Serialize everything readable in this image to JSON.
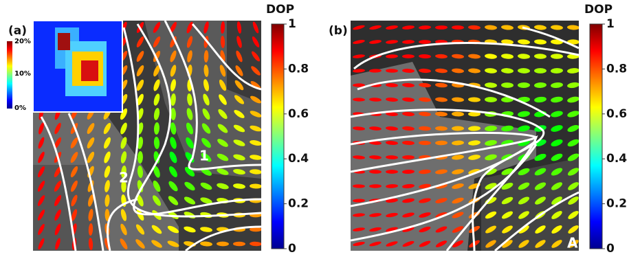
{
  "panels": [
    {
      "label": "(a)",
      "colorbar": {
        "title": "DOP",
        "lim": [
          0,
          1
        ],
        "ticks": [
          0,
          0.2,
          0.4,
          0.6,
          0.8,
          1
        ]
      },
      "annotations": [
        "1",
        "2"
      ],
      "inset": {
        "ticks": [
          "20%",
          "10%",
          "0%"
        ]
      }
    },
    {
      "label": "(b)",
      "colorbar": {
        "title": "DOP",
        "lim": [
          0,
          1
        ],
        "ticks": [
          0,
          0.2,
          0.4,
          0.6,
          0.8,
          1
        ]
      },
      "annotations": [
        "A"
      ]
    }
  ]
}
